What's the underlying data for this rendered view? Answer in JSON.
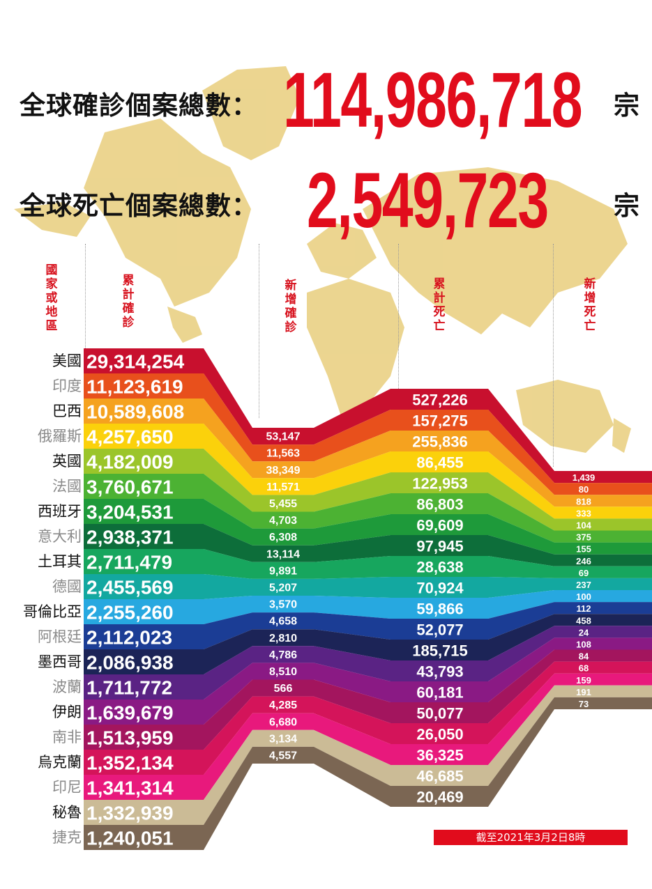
{
  "headline": {
    "cases_label": "全球確診個案總數：",
    "cases_total": "114,986,718",
    "cases_unit": "宗",
    "deaths_label": "全球死亡個案總數：",
    "deaths_total": "2,549,723",
    "deaths_unit": "宗"
  },
  "columns": {
    "country": "國家或地區",
    "cumulative_cases": "累計確診",
    "new_cases": "新增確診",
    "cumulative_deaths": "累計死亡",
    "new_deaths": "新增死亡"
  },
  "footnote": "截至2021年3月2日8時",
  "colors": {
    "accent_red": "#e10c1c",
    "map_gold": "#e5c76b",
    "label_dark": "#111111",
    "label_gray": "#8a8a8a"
  },
  "chart_data": {
    "type": "table",
    "columns": [
      "國家或地區",
      "累計確診",
      "新增確診",
      "累計死亡",
      "新增死亡"
    ],
    "rows": [
      {
        "country": "美國",
        "cases": "29,314,254",
        "new_cases": "53,147",
        "deaths": "527,226",
        "new_deaths": "1,439",
        "color": "#c8102e"
      },
      {
        "country": "印度",
        "cases": "11,123,619",
        "new_cases": "11,563",
        "deaths": "157,275",
        "new_deaths": "80",
        "color": "#e8501c"
      },
      {
        "country": "巴西",
        "cases": "10,589,608",
        "new_cases": "38,349",
        "deaths": "255,836",
        "new_deaths": "818",
        "color": "#f5a21f"
      },
      {
        "country": "俄羅斯",
        "cases": "4,257,650",
        "new_cases": "11,571",
        "deaths": "86,455",
        "new_deaths": "333",
        "color": "#fbd10b"
      },
      {
        "country": "英國",
        "cases": "4,182,009",
        "new_cases": "5,455",
        "deaths": "122,953",
        "new_deaths": "104",
        "color": "#9bc52a"
      },
      {
        "country": "法國",
        "cases": "3,760,671",
        "new_cases": "4,703",
        "deaths": "86,803",
        "new_deaths": "375",
        "color": "#4cb233"
      },
      {
        "country": "西班牙",
        "cases": "3,204,531",
        "new_cases": "6,308",
        "deaths": "69,609",
        "new_deaths": "155",
        "color": "#1e9a3a"
      },
      {
        "country": "意大利",
        "cases": "2,938,371",
        "new_cases": "13,114",
        "deaths": "97,945",
        "new_deaths": "246",
        "color": "#0d6e3a"
      },
      {
        "country": "土耳其",
        "cases": "2,711,479",
        "new_cases": "9,891",
        "deaths": "28,638",
        "new_deaths": "69",
        "color": "#17a65e"
      },
      {
        "country": "德國",
        "cases": "2,455,569",
        "new_cases": "5,207",
        "deaths": "70,924",
        "new_deaths": "237",
        "color": "#13a8a0"
      },
      {
        "country": "哥倫比亞",
        "cases": "2,255,260",
        "new_cases": "3,570",
        "deaths": "59,866",
        "new_deaths": "100",
        "color": "#27a8e0"
      },
      {
        "country": "阿根廷",
        "cases": "2,112,023",
        "new_cases": "4,658",
        "deaths": "52,077",
        "new_deaths": "112",
        "color": "#1b3d95"
      },
      {
        "country": "墨西哥",
        "cases": "2,086,938",
        "new_cases": "2,810",
        "deaths": "185,715",
        "new_deaths": "458",
        "color": "#1c2457"
      },
      {
        "country": "波蘭",
        "cases": "1,711,772",
        "new_cases": "4,786",
        "deaths": "43,793",
        "new_deaths": "24",
        "color": "#5a2384"
      },
      {
        "country": "伊朗",
        "cases": "1,639,679",
        "new_cases": "8,510",
        "deaths": "60,181",
        "new_deaths": "108",
        "color": "#8a1a84"
      },
      {
        "country": "南非",
        "cases": "1,513,959",
        "new_cases": "566",
        "deaths": "50,077",
        "new_deaths": "84",
        "color": "#a3155e"
      },
      {
        "country": "烏克蘭",
        "cases": "1,352,134",
        "new_cases": "4,285",
        "deaths": "26,050",
        "new_deaths": "68",
        "color": "#d4145a"
      },
      {
        "country": "印尼",
        "cases": "1,341,314",
        "new_cases": "6,680",
        "deaths": "36,325",
        "new_deaths": "159",
        "color": "#e8197c"
      },
      {
        "country": "秘魯",
        "cases": "1,332,939",
        "new_cases": "3,134",
        "deaths": "46,685",
        "new_deaths": "191",
        "color": "#cbbb96"
      },
      {
        "country": "捷克",
        "cases": "1,240,051",
        "new_cases": "4,557",
        "deaths": "20,469",
        "new_deaths": "73",
        "color": "#7b6653"
      }
    ]
  }
}
